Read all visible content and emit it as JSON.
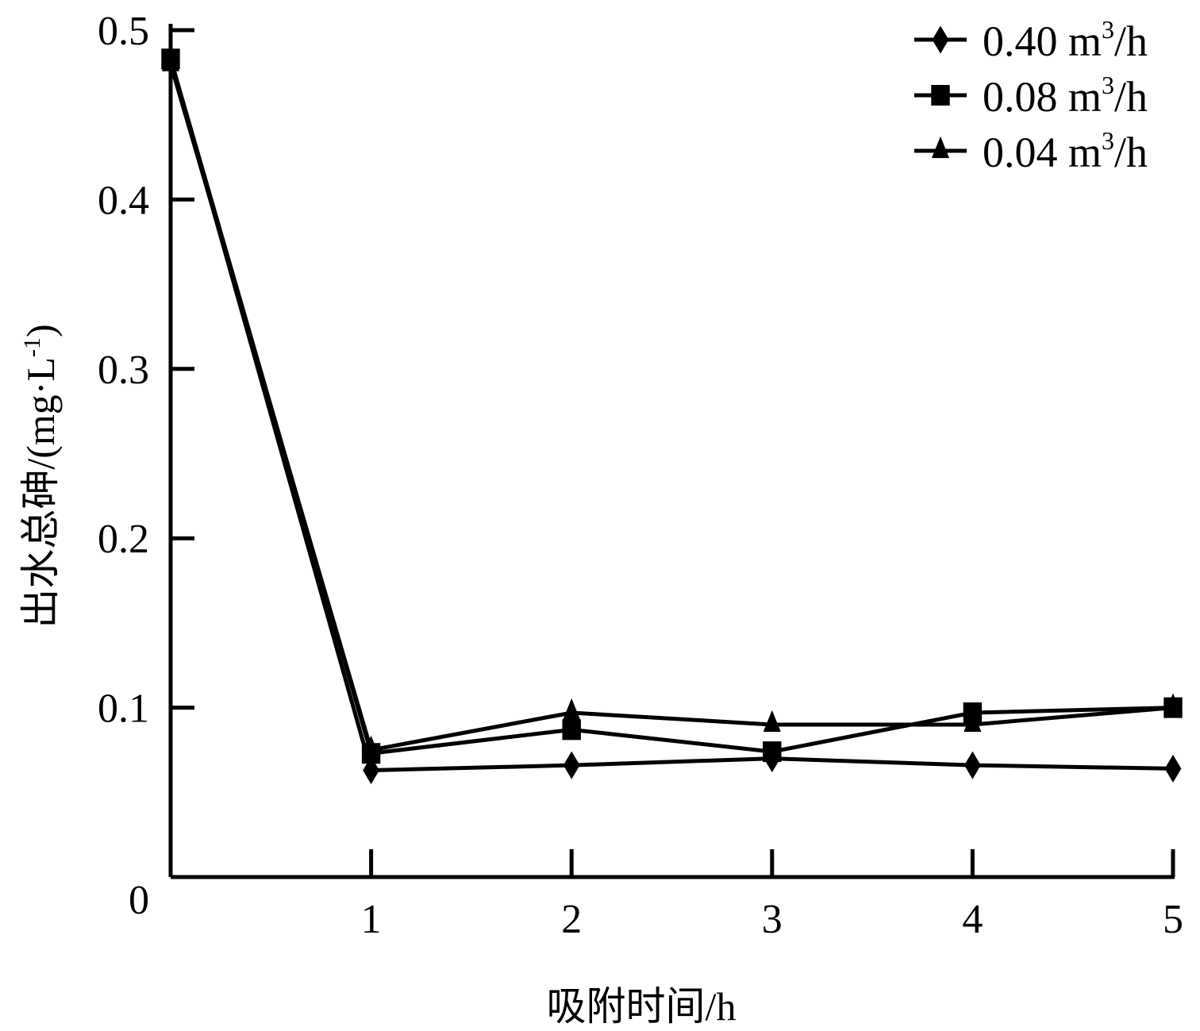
{
  "chart_data": {
    "type": "line",
    "title": "",
    "xlabel": "吸附时间/h",
    "ylabel": "出水总砷/(mg·L",
    "ylabel_sup": "-1",
    "ylabel_close": ")",
    "xlim": [
      0,
      5
    ],
    "ylim": [
      0,
      0.5
    ],
    "x_ticks": [
      1,
      2,
      3,
      4,
      5
    ],
    "x_tick_labels": [
      "1",
      "2",
      "3",
      "4",
      "5"
    ],
    "y_ticks": [
      0,
      0.1,
      0.2,
      0.3,
      0.4,
      0.5
    ],
    "y_tick_labels": [
      "0",
      "0.1",
      "0.2",
      "0.3",
      "0.4",
      "0.5"
    ],
    "grid": false,
    "legend_position": "top-right",
    "x": [
      0,
      1,
      2,
      3,
      4,
      5
    ],
    "series": [
      {
        "name": "0.40 m",
        "unit_sup": "3",
        "unit_tail": "/h",
        "marker": "diamond",
        "color": "#000000",
        "values": [
          0.483,
          0.063,
          0.066,
          0.07,
          0.066,
          0.064
        ]
      },
      {
        "name": "0.08 m",
        "unit_sup": "3",
        "unit_tail": "/h",
        "marker": "square",
        "color": "#000000",
        "values": [
          0.483,
          0.073,
          0.087,
          0.074,
          0.097,
          0.1
        ]
      },
      {
        "name": "0.04 m",
        "unit_sup": "3",
        "unit_tail": "/h",
        "marker": "triangle",
        "color": "#000000",
        "values": [
          0.48,
          0.075,
          0.097,
          0.09,
          0.09,
          0.1
        ]
      }
    ]
  }
}
